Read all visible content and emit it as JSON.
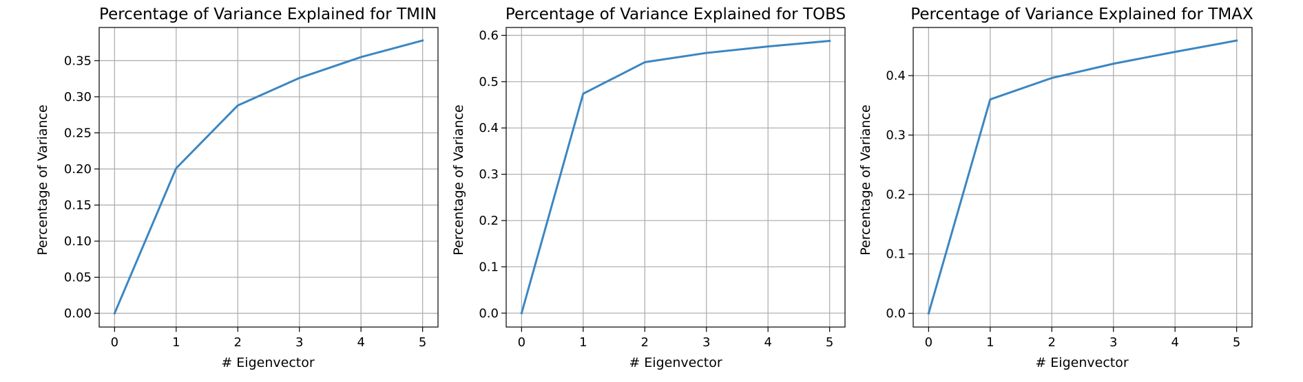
{
  "chart_data": [
    {
      "type": "line",
      "title": "Percentage of Variance Explained for TMIN",
      "xlabel": "# Eigenvector",
      "ylabel": "Percentage of Variance",
      "grid": true,
      "xlim": [
        -0.25,
        5.25
      ],
      "ylim": [
        -0.019,
        0.396
      ],
      "xticks": [
        0,
        1,
        2,
        3,
        4,
        5
      ],
      "xtick_labels": [
        "0",
        "1",
        "2",
        "3",
        "4",
        "5"
      ],
      "yticks": [
        0,
        0.05,
        0.1,
        0.15,
        0.2,
        0.25,
        0.3,
        0.35
      ],
      "ytick_labels": [
        "0.00",
        "0.05",
        "0.10",
        "0.15",
        "0.20",
        "0.25",
        "0.30",
        "0.35"
      ],
      "series": [
        {
          "color": "#3b86c2",
          "x": [
            0,
            1,
            2,
            3,
            4,
            5
          ],
          "values": [
            0,
            0.201,
            0.288,
            0.326,
            0.355,
            0.378
          ]
        }
      ]
    },
    {
      "type": "line",
      "title": "Percentage of Variance Explained for TOBS",
      "xlabel": "# Eigenvector",
      "ylabel": "Percentage of Variance",
      "grid": true,
      "xlim": [
        -0.25,
        5.25
      ],
      "ylim": [
        -0.03,
        0.617
      ],
      "xticks": [
        0,
        1,
        2,
        3,
        4,
        5
      ],
      "xtick_labels": [
        "0",
        "1",
        "2",
        "3",
        "4",
        "5"
      ],
      "yticks": [
        0,
        0.1,
        0.2,
        0.3,
        0.4,
        0.5,
        0.6
      ],
      "ytick_labels": [
        "0.0",
        "0.1",
        "0.2",
        "0.3",
        "0.4",
        "0.5",
        "0.6"
      ],
      "series": [
        {
          "color": "#3b86c2",
          "x": [
            0,
            1,
            2,
            3,
            4,
            5
          ],
          "values": [
            0,
            0.474,
            0.542,
            0.562,
            0.576,
            0.588
          ]
        }
      ]
    },
    {
      "type": "line",
      "title": "Percentage of Variance Explained for TMAX",
      "xlabel": "# Eigenvector",
      "ylabel": "Percentage of Variance",
      "grid": true,
      "xlim": [
        -0.25,
        5.25
      ],
      "ylim": [
        -0.023,
        0.481
      ],
      "xticks": [
        0,
        1,
        2,
        3,
        4,
        5
      ],
      "xtick_labels": [
        "0",
        "1",
        "2",
        "3",
        "4",
        "5"
      ],
      "yticks": [
        0,
        0.1,
        0.2,
        0.3,
        0.4
      ],
      "ytick_labels": [
        "0.0",
        "0.1",
        "0.2",
        "0.3",
        "0.4"
      ],
      "series": [
        {
          "color": "#3b86c2",
          "x": [
            0,
            1,
            2,
            3,
            4,
            5
          ],
          "values": [
            0,
            0.36,
            0.396,
            0.42,
            0.44,
            0.459
          ]
        }
      ]
    }
  ]
}
